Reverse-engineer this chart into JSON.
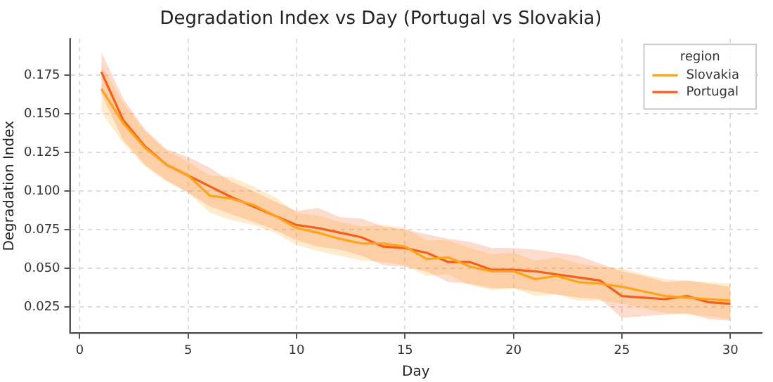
{
  "chart_data": {
    "type": "line",
    "title": "Degradation Index vs Day (Portugal vs Slovakia)",
    "xlabel": "Day",
    "ylabel": "Degradation Index",
    "legend_title": "region",
    "x": [
      1,
      2,
      3,
      4,
      5,
      6,
      7,
      8,
      9,
      10,
      11,
      12,
      13,
      14,
      15,
      16,
      17,
      18,
      19,
      20,
      21,
      22,
      23,
      24,
      25,
      26,
      27,
      28,
      29,
      30
    ],
    "series": [
      {
        "name": "Slovakia",
        "color": "#ffa31a",
        "values": [
          0.166,
          0.144,
          0.128,
          0.117,
          0.11,
          0.097,
          0.095,
          0.091,
          0.084,
          0.076,
          0.073,
          0.069,
          0.066,
          0.066,
          0.064,
          0.056,
          0.057,
          0.051,
          0.048,
          0.048,
          0.043,
          0.045,
          0.041,
          0.04,
          0.038,
          0.035,
          0.032,
          0.031,
          0.03,
          0.029
        ],
        "lower": [
          0.151,
          0.131,
          0.116,
          0.106,
          0.099,
          0.086,
          0.081,
          0.078,
          0.073,
          0.065,
          0.061,
          0.058,
          0.055,
          0.054,
          0.052,
          0.045,
          0.046,
          0.039,
          0.036,
          0.037,
          0.032,
          0.033,
          0.029,
          0.029,
          0.027,
          0.024,
          0.021,
          0.02,
          0.019,
          0.017
        ],
        "upper": [
          0.182,
          0.157,
          0.139,
          0.126,
          0.119,
          0.11,
          0.109,
          0.103,
          0.096,
          0.086,
          0.084,
          0.08,
          0.077,
          0.078,
          0.076,
          0.068,
          0.068,
          0.063,
          0.059,
          0.06,
          0.055,
          0.057,
          0.053,
          0.051,
          0.05,
          0.046,
          0.043,
          0.042,
          0.041,
          0.04
        ]
      },
      {
        "name": "Portugal",
        "color": "#f4601c",
        "values": [
          0.177,
          0.146,
          0.129,
          0.117,
          0.11,
          0.103,
          0.096,
          0.09,
          0.084,
          0.078,
          0.076,
          0.073,
          0.07,
          0.064,
          0.063,
          0.06,
          0.054,
          0.054,
          0.049,
          0.049,
          0.048,
          0.046,
          0.044,
          0.042,
          0.032,
          0.031,
          0.03,
          0.032,
          0.028,
          0.027
        ],
        "lower": [
          0.163,
          0.133,
          0.117,
          0.107,
          0.099,
          0.09,
          0.085,
          0.08,
          0.075,
          0.068,
          0.064,
          0.062,
          0.058,
          0.052,
          0.051,
          0.048,
          0.041,
          0.04,
          0.037,
          0.037,
          0.035,
          0.033,
          0.031,
          0.03,
          0.018,
          0.019,
          0.02,
          0.021,
          0.017,
          0.016
        ],
        "upper": [
          0.19,
          0.16,
          0.14,
          0.127,
          0.122,
          0.115,
          0.106,
          0.1,
          0.093,
          0.087,
          0.089,
          0.083,
          0.082,
          0.077,
          0.075,
          0.072,
          0.069,
          0.067,
          0.063,
          0.063,
          0.062,
          0.06,
          0.058,
          0.053,
          0.048,
          0.045,
          0.041,
          0.042,
          0.04,
          0.038
        ]
      }
    ],
    "xlim": [
      -0.45,
      31.45
    ],
    "xticks": [
      0,
      5,
      10,
      15,
      20,
      25,
      30
    ],
    "ylim": [
      0.008,
      0.1985
    ],
    "yticks": [
      {
        "value": 0.025,
        "label": "0.025"
      },
      {
        "value": 0.05,
        "label": "0.050"
      },
      {
        "value": 0.075,
        "label": "0.075"
      },
      {
        "value": 0.1,
        "label": "0.100"
      },
      {
        "value": 0.125,
        "label": "0.125"
      },
      {
        "value": 0.15,
        "label": "0.150"
      },
      {
        "value": 0.175,
        "label": "0.175"
      }
    ],
    "grid": true,
    "legend": "top right",
    "marker": "none",
    "line_style": "solid"
  }
}
